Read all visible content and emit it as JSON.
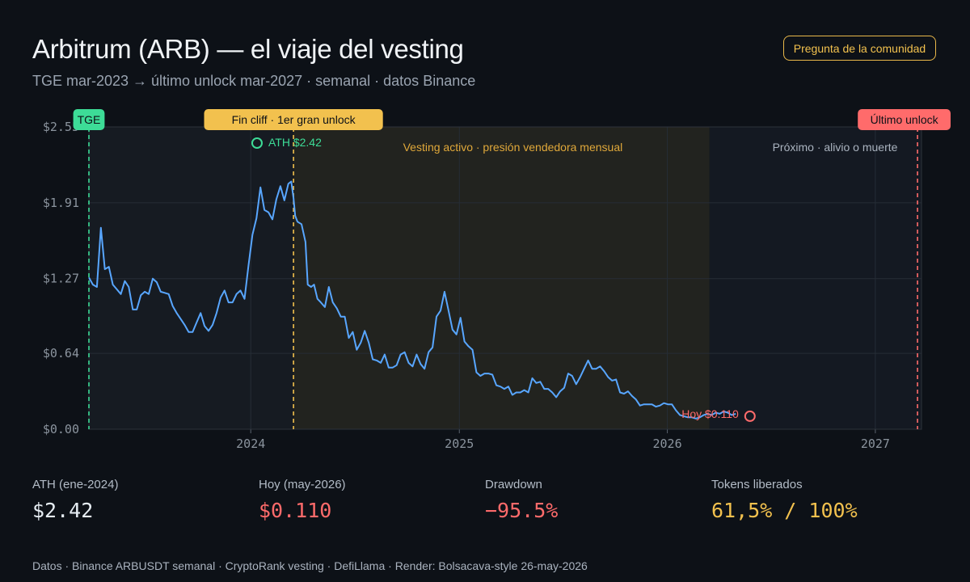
{
  "header": {
    "title": "Arbitrum (ARB) — el viaje del vesting",
    "subtitle": "TGE mar-2023 → último unlock mar-2027 · semanal · datos Binance",
    "community_button": "Pregunta de la comunidad"
  },
  "colors": {
    "background": "#0d1117",
    "line": "#58a6ff",
    "tge": "#3ddc97",
    "cliff": "#f2c14e",
    "last_unlock": "#ff6b6b",
    "grid": "#262d36"
  },
  "chart_data": {
    "type": "line",
    "xlim": [
      "2023-03-23",
      "2027-03-23"
    ],
    "ylim": [
      0,
      2.55
    ],
    "x_ticks": [
      {
        "date": "2024-01-01",
        "label": "2024"
      },
      {
        "date": "2025-01-01",
        "label": "2025"
      },
      {
        "date": "2026-01-01",
        "label": "2026"
      },
      {
        "date": "2027-01-01",
        "label": "2027"
      }
    ],
    "y_ticks": [
      {
        "value": 0,
        "label": "$0.00"
      },
      {
        "value": 0.64,
        "label": "$0.64"
      },
      {
        "value": 1.27,
        "label": "$1.27"
      },
      {
        "value": 1.91,
        "label": "$1.91"
      },
      {
        "value": 2.55,
        "label": "$2.55"
      }
    ],
    "grid": true,
    "phases": [
      {
        "name": "pre_cliff",
        "start": "2023-03-23",
        "end": "2024-03-16",
        "color": "#161b22"
      },
      {
        "name": "vesting",
        "start": "2024-03-16",
        "end": "2026-03-16",
        "color": "#22231f",
        "label": "Vesting activo · presión vendedora mensual"
      },
      {
        "name": "next",
        "start": "2026-03-16",
        "end": "2027-03-16",
        "color": "#141922",
        "label": "Próximo · alivio o muerte"
      }
    ],
    "markers": [
      {
        "name": "tge",
        "date": "2023-03-23",
        "label": "TGE",
        "color": "#3ddc97"
      },
      {
        "name": "cliff",
        "date": "2024-03-16",
        "label": "Fin cliff · 1er gran unlock",
        "color": "#f2c14e"
      },
      {
        "name": "last-unlock",
        "date": "2027-03-16",
        "label": "Último unlock",
        "color": "#ff6b6b"
      }
    ],
    "annotations": [
      {
        "name": "ath",
        "date": "2024-01-12",
        "value": 2.42,
        "label": "ATH $2.42",
        "color": "#3ddc97"
      },
      {
        "name": "today",
        "date": "2026-05-26",
        "value": 0.11,
        "label": "Hoy $0.110",
        "color": "#ff6b6b"
      }
    ],
    "series": [
      {
        "color": "#58a6ff",
        "points": [
          [
            "2023-03-23",
            1.28
          ],
          [
            "2023-03-30",
            1.22
          ],
          [
            "2023-04-06",
            1.2
          ],
          [
            "2023-04-13",
            1.7
          ],
          [
            "2023-04-20",
            1.35
          ],
          [
            "2023-04-27",
            1.37
          ],
          [
            "2023-05-04",
            1.22
          ],
          [
            "2023-05-11",
            1.18
          ],
          [
            "2023-05-18",
            1.14
          ],
          [
            "2023-05-25",
            1.25
          ],
          [
            "2023-06-01",
            1.2
          ],
          [
            "2023-06-08",
            1.01
          ],
          [
            "2023-06-15",
            1.01
          ],
          [
            "2023-06-22",
            1.13
          ],
          [
            "2023-06-29",
            1.16
          ],
          [
            "2023-07-06",
            1.14
          ],
          [
            "2023-07-13",
            1.27
          ],
          [
            "2023-07-20",
            1.24
          ],
          [
            "2023-07-27",
            1.16
          ],
          [
            "2023-08-03",
            1.15
          ],
          [
            "2023-08-10",
            1.14
          ],
          [
            "2023-08-17",
            1.04
          ],
          [
            "2023-08-24",
            0.98
          ],
          [
            "2023-08-31",
            0.93
          ],
          [
            "2023-09-07",
            0.88
          ],
          [
            "2023-09-14",
            0.82
          ],
          [
            "2023-09-21",
            0.82
          ],
          [
            "2023-09-28",
            0.9
          ],
          [
            "2023-10-05",
            0.98
          ],
          [
            "2023-10-12",
            0.87
          ],
          [
            "2023-10-19",
            0.83
          ],
          [
            "2023-10-26",
            0.88
          ],
          [
            "2023-11-02",
            0.98
          ],
          [
            "2023-11-09",
            1.11
          ],
          [
            "2023-11-16",
            1.17
          ],
          [
            "2023-11-23",
            1.07
          ],
          [
            "2023-11-30",
            1.07
          ],
          [
            "2023-12-07",
            1.14
          ],
          [
            "2023-12-14",
            1.17
          ],
          [
            "2023-12-21",
            1.1
          ],
          [
            "2023-12-28",
            1.38
          ],
          [
            "2024-01-04",
            1.64
          ],
          [
            "2024-01-11",
            1.78
          ],
          [
            "2024-01-18",
            2.04
          ],
          [
            "2024-01-25",
            1.85
          ],
          [
            "2024-02-01",
            1.83
          ],
          [
            "2024-02-08",
            1.77
          ],
          [
            "2024-02-15",
            1.94
          ],
          [
            "2024-02-22",
            2.05
          ],
          [
            "2024-02-29",
            1.93
          ],
          [
            "2024-03-07",
            2.07
          ],
          [
            "2024-03-12",
            2.09
          ],
          [
            "2024-03-16",
            1.95
          ],
          [
            "2024-03-19",
            1.8
          ],
          [
            "2024-03-23",
            1.75
          ],
          [
            "2024-03-30",
            1.73
          ],
          [
            "2024-04-06",
            1.58
          ],
          [
            "2024-04-10",
            1.22
          ],
          [
            "2024-04-16",
            1.2
          ],
          [
            "2024-04-21",
            1.22
          ],
          [
            "2024-04-27",
            1.1
          ],
          [
            "2024-05-03",
            1.07
          ],
          [
            "2024-05-10",
            1.03
          ],
          [
            "2024-05-17",
            1.2
          ],
          [
            "2024-05-24",
            1.07
          ],
          [
            "2024-05-31",
            1.02
          ],
          [
            "2024-06-07",
            0.95
          ],
          [
            "2024-06-14",
            0.95
          ],
          [
            "2024-06-21",
            0.77
          ],
          [
            "2024-06-28",
            0.82
          ],
          [
            "2024-07-05",
            0.67
          ],
          [
            "2024-07-12",
            0.73
          ],
          [
            "2024-07-19",
            0.83
          ],
          [
            "2024-07-26",
            0.73
          ],
          [
            "2024-08-02",
            0.59
          ],
          [
            "2024-08-09",
            0.58
          ],
          [
            "2024-08-16",
            0.56
          ],
          [
            "2024-08-23",
            0.63
          ],
          [
            "2024-08-30",
            0.52
          ],
          [
            "2024-09-06",
            0.52
          ],
          [
            "2024-09-13",
            0.54
          ],
          [
            "2024-09-20",
            0.63
          ],
          [
            "2024-09-27",
            0.65
          ],
          [
            "2024-10-04",
            0.56
          ],
          [
            "2024-10-11",
            0.53
          ],
          [
            "2024-10-18",
            0.63
          ],
          [
            "2024-10-25",
            0.55
          ],
          [
            "2024-11-01",
            0.51
          ],
          [
            "2024-11-08",
            0.65
          ],
          [
            "2024-11-15",
            0.69
          ],
          [
            "2024-11-22",
            0.95
          ],
          [
            "2024-11-29",
            1.0
          ],
          [
            "2024-12-06",
            1.16
          ],
          [
            "2024-12-13",
            1.0
          ],
          [
            "2024-12-20",
            0.84
          ],
          [
            "2024-12-27",
            0.8
          ],
          [
            "2025-01-03",
            0.94
          ],
          [
            "2025-01-10",
            0.74
          ],
          [
            "2025-01-17",
            0.7
          ],
          [
            "2025-01-24",
            0.67
          ],
          [
            "2025-01-31",
            0.48
          ],
          [
            "2025-02-07",
            0.45
          ],
          [
            "2025-02-14",
            0.47
          ],
          [
            "2025-02-21",
            0.47
          ],
          [
            "2025-02-28",
            0.46
          ],
          [
            "2025-03-07",
            0.37
          ],
          [
            "2025-03-14",
            0.36
          ],
          [
            "2025-03-21",
            0.34
          ],
          [
            "2025-03-28",
            0.36
          ],
          [
            "2025-04-04",
            0.29
          ],
          [
            "2025-04-11",
            0.31
          ],
          [
            "2025-04-18",
            0.31
          ],
          [
            "2025-04-25",
            0.33
          ],
          [
            "2025-05-02",
            0.31
          ],
          [
            "2025-05-09",
            0.43
          ],
          [
            "2025-05-16",
            0.39
          ],
          [
            "2025-05-23",
            0.4
          ],
          [
            "2025-05-30",
            0.34
          ],
          [
            "2025-06-06",
            0.34
          ],
          [
            "2025-06-13",
            0.31
          ],
          [
            "2025-06-20",
            0.27
          ],
          [
            "2025-06-27",
            0.32
          ],
          [
            "2025-07-04",
            0.35
          ],
          [
            "2025-07-11",
            0.47
          ],
          [
            "2025-07-18",
            0.45
          ],
          [
            "2025-07-25",
            0.38
          ],
          [
            "2025-08-01",
            0.44
          ],
          [
            "2025-08-08",
            0.51
          ],
          [
            "2025-08-15",
            0.58
          ],
          [
            "2025-08-22",
            0.51
          ],
          [
            "2025-08-29",
            0.51
          ],
          [
            "2025-09-05",
            0.53
          ],
          [
            "2025-09-12",
            0.49
          ],
          [
            "2025-09-19",
            0.44
          ],
          [
            "2025-09-26",
            0.41
          ],
          [
            "2025-10-03",
            0.42
          ],
          [
            "2025-10-10",
            0.31
          ],
          [
            "2025-10-17",
            0.3
          ],
          [
            "2025-10-24",
            0.32
          ],
          [
            "2025-10-31",
            0.28
          ],
          [
            "2025-11-07",
            0.25
          ],
          [
            "2025-11-14",
            0.2
          ],
          [
            "2025-11-21",
            0.21
          ],
          [
            "2025-11-28",
            0.21
          ],
          [
            "2025-12-05",
            0.21
          ],
          [
            "2025-12-12",
            0.19
          ],
          [
            "2025-12-19",
            0.2
          ],
          [
            "2025-12-26",
            0.22
          ],
          [
            "2026-01-02",
            0.21
          ],
          [
            "2026-01-09",
            0.21
          ],
          [
            "2026-01-16",
            0.16
          ],
          [
            "2026-01-23",
            0.12
          ],
          [
            "2026-01-30",
            0.11
          ],
          [
            "2026-02-06",
            0.1
          ],
          [
            "2026-02-13",
            0.1
          ],
          [
            "2026-02-20",
            0.09
          ],
          [
            "2026-02-27",
            0.1
          ],
          [
            "2026-03-06",
            0.12
          ],
          [
            "2026-03-13",
            0.13
          ],
          [
            "2026-03-20",
            0.12
          ],
          [
            "2026-03-27",
            0.14
          ],
          [
            "2026-04-03",
            0.13
          ],
          [
            "2026-04-10",
            0.15
          ],
          [
            "2026-04-17",
            0.14
          ],
          [
            "2026-04-24",
            0.12
          ],
          [
            "2026-05-01",
            0.13
          ]
        ]
      }
    ]
  },
  "stats": [
    {
      "label": "ATH (ene-2024)",
      "value": "$2.42",
      "color": "#e6edf3"
    },
    {
      "label": "Hoy (may-2026)",
      "value": "$0.110",
      "color": "#ff6b6b"
    },
    {
      "label": "Drawdown",
      "value": "−95.5%",
      "color": "#ff6b6b"
    },
    {
      "label": "Tokens liberados",
      "value": "61,5% / 100%",
      "color": "#f2c14e"
    }
  ],
  "footer": "Datos · Binance ARBUSDT semanal · CryptoRank vesting · DefiLlama · Render: Bolsacava-style 26-may-2026"
}
